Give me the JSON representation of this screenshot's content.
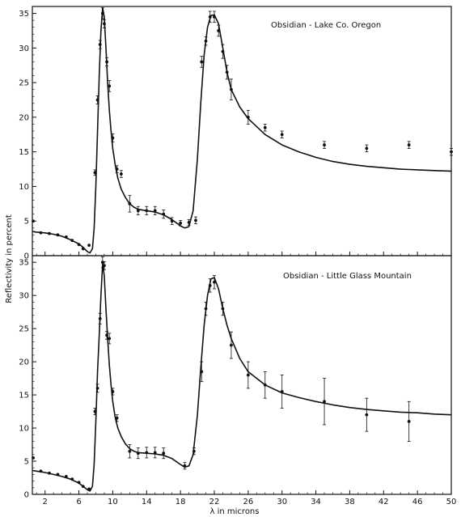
{
  "chart_data": [
    {
      "type": "line",
      "title": "Obsidian - Lake Co. Oregon",
      "xlabel": "λ in microns",
      "ylabel": "Reflectivity in percent",
      "xlim": [
        0.5,
        50
      ],
      "ylim": [
        0,
        36
      ],
      "xticks": [
        2,
        6,
        10,
        14,
        18,
        22,
        26,
        30,
        34,
        38,
        42,
        46,
        50
      ],
      "yticks": [
        0,
        5,
        10,
        15,
        20,
        25,
        30,
        35
      ],
      "grid": false,
      "series": [
        {
          "style": "curve",
          "x": [
            0.5,
            1,
            2,
            3,
            4,
            5,
            6,
            6.5,
            7,
            7.3,
            7.6,
            7.8,
            8.0,
            8.2,
            8.4,
            8.6,
            8.8,
            9.0,
            9.2,
            9.4,
            9.6,
            9.8,
            10,
            10.3,
            10.6,
            11,
            11.5,
            12,
            12.5,
            13,
            14,
            15,
            16,
            17,
            18,
            18.5,
            19,
            19.5,
            20,
            20.4,
            20.8,
            21.2,
            21.6,
            22,
            22.5,
            23,
            23.5,
            24,
            25,
            26,
            28,
            30,
            32,
            34,
            36,
            38,
            40,
            42,
            44,
            46,
            48,
            50
          ],
          "y": [
            3.5,
            3.4,
            3.3,
            3.1,
            2.8,
            2.3,
            1.7,
            1.2,
            0.6,
            0.4,
            1.0,
            4.0,
            10.0,
            18.0,
            26.0,
            32.5,
            35.8,
            34.5,
            30.0,
            25.0,
            21.0,
            18.0,
            15.5,
            13.0,
            11.2,
            9.6,
            8.4,
            7.5,
            7.0,
            6.7,
            6.5,
            6.3,
            5.9,
            5.2,
            4.3,
            4.0,
            4.2,
            6.5,
            14.0,
            22.0,
            29.0,
            33.0,
            34.7,
            34.8,
            33.5,
            30.0,
            26.5,
            24.0,
            21.5,
            19.8,
            17.5,
            16.0,
            15.0,
            14.2,
            13.6,
            13.2,
            12.9,
            12.7,
            12.5,
            12.4,
            12.3,
            12.2
          ]
        },
        {
          "style": "measured",
          "x": [
            0.6,
            1.5,
            2.5,
            3.5,
            4.5,
            5.2,
            6.0,
            6.5,
            7.2,
            7.9,
            8.2,
            8.5,
            8.8,
            9.0,
            9.3,
            9.6,
            10.0,
            10.5,
            11.0,
            12.0,
            13.0,
            14.0,
            15.0,
            16.0,
            17.0,
            18.0,
            19.0,
            19.8,
            20.5,
            21.0,
            21.5,
            22.0,
            22.5,
            23.0,
            23.5,
            24.0,
            26.0,
            28.0,
            30.0,
            35.0,
            40.0,
            45.0,
            50.0
          ],
          "y": [
            5.0,
            3.3,
            3.2,
            3.0,
            2.7,
            2.2,
            1.6,
            1.0,
            1.5,
            12.0,
            22.5,
            30.5,
            35.0,
            33.5,
            28.0,
            24.5,
            17.0,
            12.5,
            11.8,
            7.5,
            6.5,
            6.5,
            6.5,
            6.0,
            5.0,
            4.7,
            4.8,
            5.1,
            28.0,
            31.0,
            34.5,
            34.5,
            32.5,
            29.5,
            26.5,
            24.0,
            20.0,
            18.5,
            17.5,
            16.0,
            15.5,
            16.0,
            15.0
          ],
          "err": [
            0,
            0,
            0,
            0,
            0,
            0,
            0,
            0,
            0,
            0.4,
            0.6,
            0.6,
            0.8,
            0.6,
            0.6,
            0.8,
            0.6,
            0.5,
            0.5,
            1.2,
            0.6,
            0.6,
            0.6,
            0.6,
            0.5,
            0.4,
            0.4,
            0.5,
            0.8,
            0.6,
            0.8,
            0.8,
            0.8,
            1.0,
            1.0,
            1.5,
            1.0,
            0.5,
            0.5,
            0.5,
            0.5,
            0.5,
            0.5
          ]
        }
      ]
    },
    {
      "type": "line",
      "title": "Obsidian - Little Glass Mountain",
      "xlabel": "λ in microns",
      "ylabel": "Reflectivity in percent",
      "xlim": [
        0.5,
        50
      ],
      "ylim": [
        0,
        36
      ],
      "xticks": [
        2,
        6,
        10,
        14,
        18,
        22,
        26,
        30,
        34,
        38,
        42,
        46,
        50
      ],
      "yticks": [
        0,
        5,
        10,
        15,
        20,
        25,
        30,
        35
      ],
      "grid": false,
      "series": [
        {
          "style": "curve",
          "x": [
            0.5,
            1,
            2,
            3,
            4,
            5,
            6,
            6.5,
            7,
            7.3,
            7.6,
            7.8,
            8.0,
            8.2,
            8.4,
            8.6,
            8.8,
            9.0,
            9.2,
            9.4,
            9.6,
            9.8,
            10,
            10.3,
            10.6,
            11,
            11.5,
            12,
            12.5,
            13,
            14,
            15,
            16,
            17,
            18,
            18.5,
            19,
            19.5,
            20,
            20.4,
            20.8,
            21.2,
            21.6,
            22,
            22.5,
            23,
            23.5,
            24,
            25,
            26,
            28,
            30,
            32,
            34,
            36,
            38,
            40,
            42,
            44,
            46,
            48,
            50
          ],
          "y": [
            3.6,
            3.5,
            3.3,
            3.0,
            2.7,
            2.3,
            1.7,
            1.2,
            0.7,
            0.5,
            1.2,
            4.5,
            11.0,
            18.5,
            24.0,
            30.0,
            34.8,
            33.0,
            28.0,
            23.5,
            19.5,
            16.5,
            14.0,
            11.5,
            10.0,
            8.7,
            7.6,
            6.9,
            6.5,
            6.3,
            6.2,
            6.1,
            5.9,
            5.4,
            4.5,
            4.1,
            4.3,
            6.0,
            12.0,
            19.0,
            25.5,
            30.0,
            32.5,
            32.7,
            31.0,
            28.0,
            25.5,
            23.5,
            20.5,
            18.5,
            16.5,
            15.3,
            14.6,
            14.0,
            13.5,
            13.1,
            12.8,
            12.6,
            12.4,
            12.3,
            12.1,
            12.0
          ]
        },
        {
          "style": "measured",
          "x": [
            0.6,
            1.5,
            2.5,
            3.5,
            4.5,
            5.2,
            6.0,
            6.5,
            7.2,
            7.9,
            8.2,
            8.5,
            8.8,
            9.0,
            9.3,
            9.6,
            10.0,
            10.5,
            12.0,
            13.0,
            14.0,
            15.0,
            16.0,
            18.5,
            19.6,
            20.5,
            21.0,
            21.5,
            22.0,
            23.0,
            24.0,
            26.0,
            28.0,
            30.0,
            35.0,
            40.0,
            45.0
          ],
          "y": [
            5.5,
            3.5,
            3.2,
            3.0,
            2.7,
            2.3,
            1.8,
            1.2,
            0.8,
            12.5,
            16.0,
            26.5,
            35.0,
            34.5,
            24.0,
            23.5,
            15.5,
            11.5,
            6.5,
            6.2,
            6.3,
            6.3,
            6.2,
            4.3,
            6.5,
            18.5,
            28.0,
            31.5,
            32.0,
            28.0,
            22.5,
            18.0,
            16.5,
            15.5,
            14.0,
            12.0,
            11.0
          ],
          "err": [
            0,
            0,
            0,
            0,
            0,
            0,
            0,
            0,
            0,
            0.5,
            0.6,
            0.8,
            0.8,
            0.6,
            0.6,
            0.8,
            0.5,
            0.5,
            1.0,
            0.8,
            0.8,
            0.8,
            0.8,
            0.5,
            0.5,
            1.5,
            1.0,
            1.0,
            1.0,
            1.0,
            2.0,
            2.0,
            2.0,
            2.5,
            3.5,
            2.5,
            3.0
          ]
        }
      ]
    }
  ]
}
